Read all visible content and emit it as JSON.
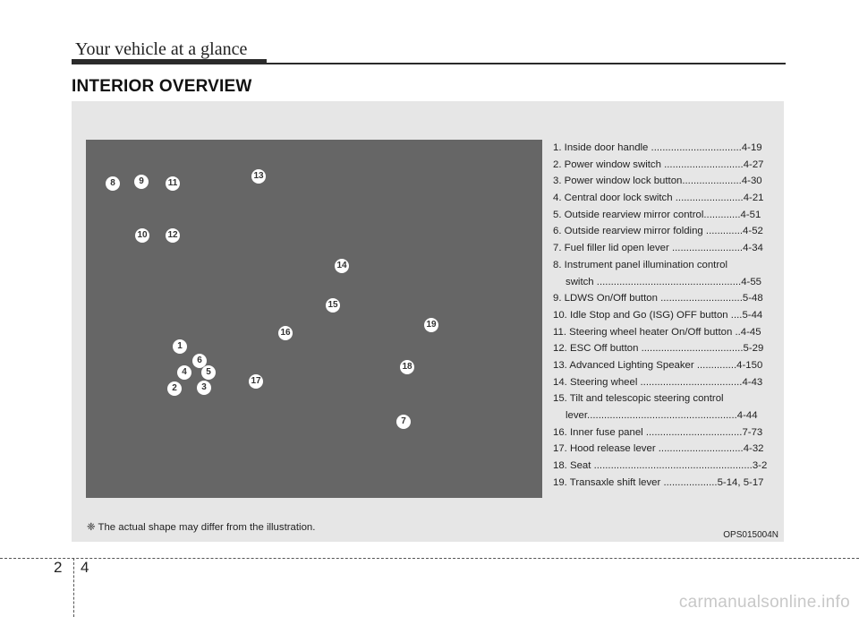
{
  "header": {
    "section_title": "Your vehicle at a glance",
    "page_heading": "INTERIOR OVERVIEW"
  },
  "illustration": {
    "markers": [
      "1",
      "2",
      "3",
      "4",
      "5",
      "6",
      "7",
      "8",
      "9",
      "10",
      "11",
      "12",
      "13",
      "14",
      "15",
      "16",
      "17",
      "18",
      "19"
    ]
  },
  "legend": [
    {
      "text": "1. Inside door handle ................................4-19"
    },
    {
      "text": "2. Power window switch ............................4-27"
    },
    {
      "text": "3. Power window lock button.....................4-30"
    },
    {
      "text": "4. Central door lock switch ........................4-21"
    },
    {
      "text": "5. Outside rearview mirror control.............4-51"
    },
    {
      "text": "6. Outside rearview mirror folding .............4-52"
    },
    {
      "text": "7. Fuel filler lid open lever .........................4-34"
    },
    {
      "text": "8. Instrument panel illumination control"
    },
    {
      "text": "switch ...................................................4-55",
      "indent": true
    },
    {
      "text": "9. LDWS On/Off button .............................5-48"
    },
    {
      "text": "10. Idle Stop and Go (ISG) OFF button ....5-44"
    },
    {
      "text": "11. Steering wheel heater On/Off button ..4-45"
    },
    {
      "text": "12. ESC Off button ....................................5-29"
    },
    {
      "text": "13. Advanced Lighting Speaker ..............4-150"
    },
    {
      "text": "14. Steering wheel ....................................4-43"
    },
    {
      "text": "15. Tilt and telescopic steering control"
    },
    {
      "text": "lever.....................................................4-44",
      "indent": true
    },
    {
      "text": "16. Inner fuse panel ..................................7-73"
    },
    {
      "text": "17. Hood release lever ..............................4-32"
    },
    {
      "text": "18. Seat ........................................................3-2"
    },
    {
      "text": "19. Transaxle shift lever ...................5-14, 5-17"
    }
  ],
  "note": "❈ The actual shape may differ from the illustration.",
  "image_code": "OPS015004N",
  "footer": {
    "chapter": "2",
    "page": "4",
    "watermark": "carmanualsonline.info"
  }
}
